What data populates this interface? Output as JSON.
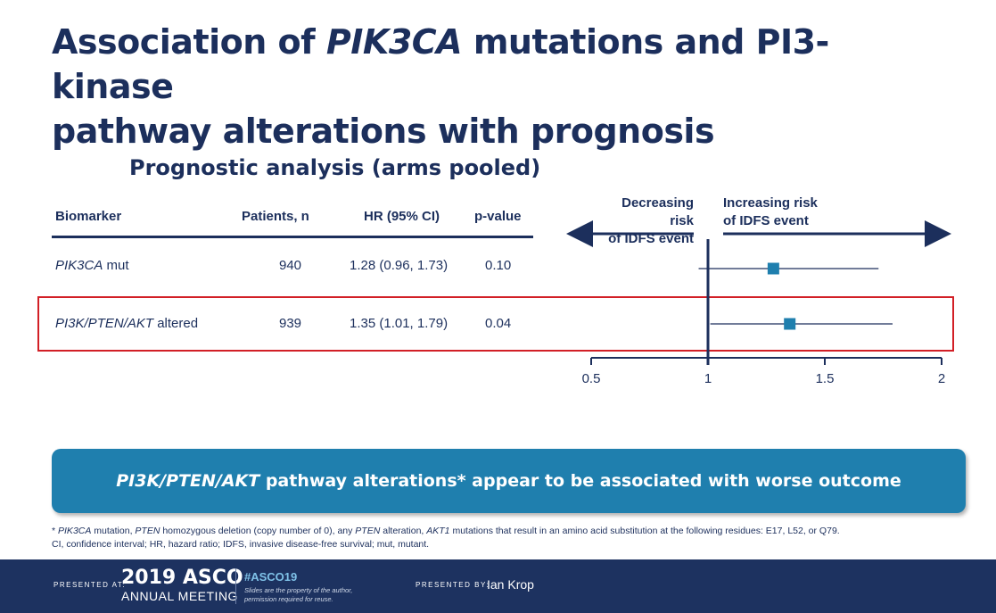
{
  "title": {
    "line1_pre": "Association of ",
    "line1_italic": "PIK3CA",
    "line1_post": " mutations and PI3-kinase",
    "line2": "pathway alterations with prognosis"
  },
  "subtitle": "Prognostic analysis (arms pooled)",
  "table": {
    "headers": {
      "biomarker": "Biomarker",
      "patients": "Patients, n",
      "hr": "HR (95% CI)",
      "pvalue": "p-value"
    },
    "rows": [
      {
        "biomarker_italic": "PIK3CA",
        "biomarker_rest": " mut",
        "patients": "940",
        "hr": "1.28 (0.96, 1.73)",
        "pvalue": "0.10"
      },
      {
        "biomarker_italic": "PI3K/PTEN/AKT",
        "biomarker_rest": " altered",
        "patients": "939",
        "hr": "1.35 (1.01, 1.79)",
        "pvalue": "0.04"
      }
    ]
  },
  "forest": {
    "left_label_line1": "Decreasing risk",
    "left_label_line2": "of  IDFS event",
    "right_label_line1": "Increasing risk",
    "right_label_line2": "of IDFS event",
    "ticks": [
      "0.5",
      "1",
      "1.5",
      "2"
    ]
  },
  "chart_data": {
    "type": "scatter",
    "categories": [
      "PIK3CA mut",
      "PI3K/PTEN/AKT altered"
    ],
    "series": [
      {
        "values": [
          1.28,
          1.35
        ],
        "lower": [
          0.96,
          1.01
        ],
        "upper": [
          1.73,
          1.79
        ]
      }
    ],
    "xlim": [
      0.5,
      2
    ],
    "reference_line": 1,
    "point_color": "#1f7fae",
    "line_color": "#1c2f5c"
  },
  "banner": {
    "italic": "PI3K/PTEN/AKT",
    "rest": " pathway alterations* appear to be associated with worse outcome",
    "color": "#1f7fae"
  },
  "footnote": {
    "line1": [
      {
        "t": "* ",
        "i": false
      },
      {
        "t": "PIK3CA",
        "i": true
      },
      {
        "t": " mutation, ",
        "i": false
      },
      {
        "t": "PTEN",
        "i": true
      },
      {
        "t": " homozygous deletion (copy number of 0), any ",
        "i": false
      },
      {
        "t": "PTEN",
        "i": true
      },
      {
        "t": " alteration, ",
        "i": false
      },
      {
        "t": "AKT1",
        "i": true
      },
      {
        "t": " mutations that result in an amino acid substitution at the following residues: E17, L52, or Q79.",
        "i": false
      }
    ],
    "line2": "CI, confidence interval; HR, hazard ratio; IDFS, invasive disease-free survival; mut, mutant."
  },
  "footer": {
    "presented_at": "PRESENTED AT:",
    "asco_year": "2019 ASCO",
    "asco_sub": "ANNUAL MEETING",
    "hashtag": "#ASCO19",
    "note_line1": "Slides are the property of the author,",
    "note_line2": "permission required for reuse.",
    "presented_by": "PRESENTED BY:",
    "presenter": "Ian Krop",
    "background": "#1d3260"
  }
}
